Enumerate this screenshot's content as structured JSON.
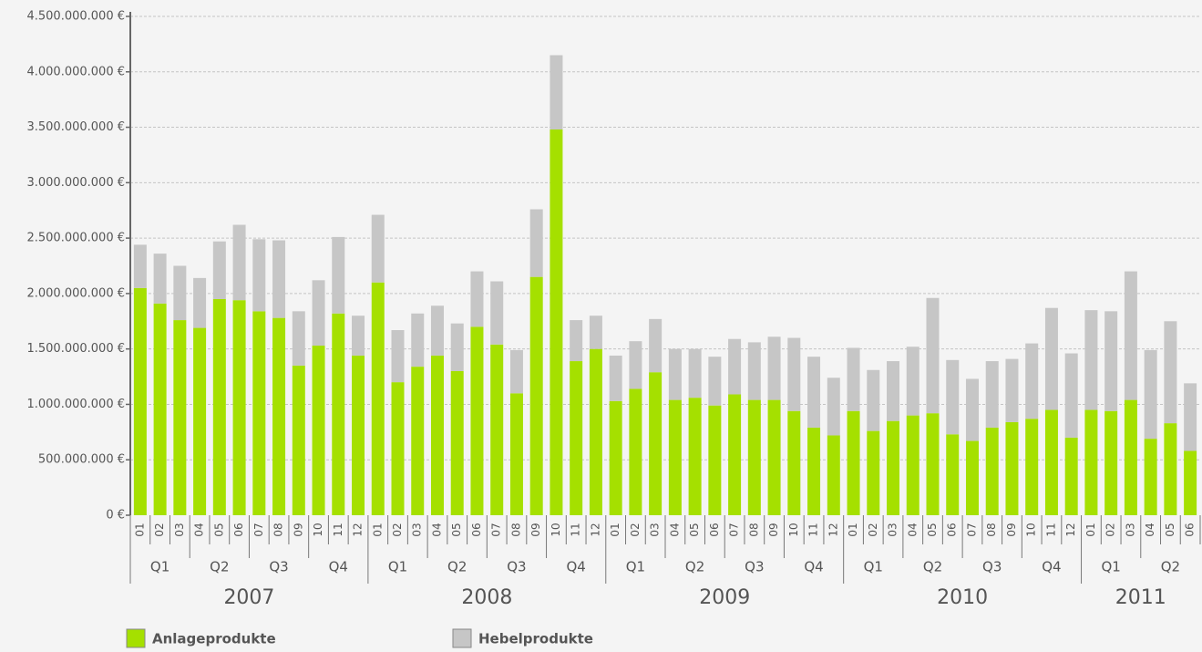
{
  "chart_data": {
    "type": "bar",
    "stacked": true,
    "categories": [
      "01",
      "02",
      "03",
      "04",
      "05",
      "06",
      "07",
      "08",
      "09",
      "10",
      "11",
      "12",
      "01",
      "02",
      "03",
      "04",
      "05",
      "06",
      "07",
      "08",
      "09",
      "10",
      "11",
      "12",
      "01",
      "02",
      "03",
      "04",
      "05",
      "06",
      "07",
      "08",
      "09",
      "10",
      "11",
      "12",
      "01",
      "02",
      "03",
      "04",
      "05",
      "06",
      "07",
      "08",
      "09",
      "10",
      "11",
      "12",
      "01",
      "02",
      "03",
      "04",
      "05",
      "06"
    ],
    "quarters": [
      "Q1",
      "Q2",
      "Q3",
      "Q4",
      "Q1",
      "Q2",
      "Q3",
      "Q4",
      "Q1",
      "Q2",
      "Q3",
      "Q4",
      "Q1",
      "Q2",
      "Q3",
      "Q4",
      "Q1",
      "Q2"
    ],
    "years": [
      "2007",
      "2008",
      "2009",
      "2010",
      "2011"
    ],
    "series": [
      {
        "name": "Anlageprodukte",
        "color": "#a5e000",
        "values": [
          2050000000,
          1910000000,
          1760000000,
          1690000000,
          1950000000,
          1940000000,
          1840000000,
          1780000000,
          1350000000,
          1530000000,
          1820000000,
          1440000000,
          2100000000,
          1200000000,
          1340000000,
          1440000000,
          1300000000,
          1700000000,
          1540000000,
          1100000000,
          2150000000,
          3480000000,
          1390000000,
          1500000000,
          1030000000,
          1140000000,
          1290000000,
          1040000000,
          1060000000,
          990000000,
          1090000000,
          1040000000,
          1040000000,
          940000000,
          790000000,
          720000000,
          940000000,
          760000000,
          850000000,
          900000000,
          920000000,
          730000000,
          670000000,
          790000000,
          840000000,
          870000000,
          950000000,
          700000000,
          950000000,
          940000000,
          1040000000,
          690000000,
          830000000,
          580000000
        ]
      },
      {
        "name": "Hebelprodukte",
        "color": "#c6c6c6",
        "values": [
          390000000,
          450000000,
          490000000,
          450000000,
          520000000,
          680000000,
          650000000,
          700000000,
          490000000,
          590000000,
          690000000,
          360000000,
          610000000,
          470000000,
          480000000,
          450000000,
          430000000,
          500000000,
          570000000,
          390000000,
          610000000,
          670000000,
          370000000,
          300000000,
          410000000,
          430000000,
          480000000,
          460000000,
          440000000,
          440000000,
          500000000,
          520000000,
          570000000,
          660000000,
          640000000,
          520000000,
          570000000,
          550000000,
          540000000,
          620000000,
          1040000000,
          670000000,
          560000000,
          600000000,
          570000000,
          680000000,
          920000000,
          760000000,
          900000000,
          900000000,
          1160000000,
          800000000,
          920000000,
          610000000
        ]
      }
    ],
    "ylim": [
      0,
      4500000000
    ],
    "yticks": [
      {
        "value": 0,
        "label": "0 €"
      },
      {
        "value": 500000000,
        "label": "500.000.000 €"
      },
      {
        "value": 1000000000,
        "label": "1.000.000.000 €"
      },
      {
        "value": 1500000000,
        "label": "1.500.000.000 €"
      },
      {
        "value": 2000000000,
        "label": "2.000.000.000 €"
      },
      {
        "value": 2500000000,
        "label": "2.500.000.000 €"
      },
      {
        "value": 3000000000,
        "label": "3.000.000.000 €"
      },
      {
        "value": 3500000000,
        "label": "3.500.000.000 €"
      },
      {
        "value": 4000000000,
        "label": "4.000.000.000 €"
      },
      {
        "value": 4500000000,
        "label": "4.500.000.000 €"
      }
    ],
    "grid": true
  }
}
